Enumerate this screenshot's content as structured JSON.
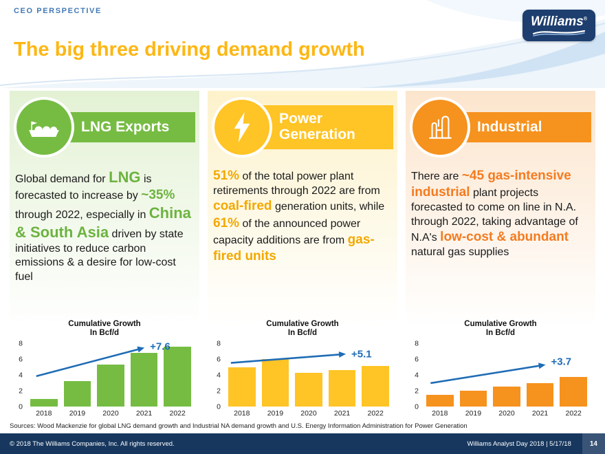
{
  "slide": {
    "eyebrow": "CEO PERSPECTIVE",
    "title": "The big three driving demand growth",
    "logo_text": "Williams",
    "logo_mark": "®",
    "sources": "Sources: Wood Mackenzie for global LNG demand growth and Industrial NA demand growth and U.S. Energy Information Administration for Power Generation",
    "footer_left": "© 2018 The Williams Companies, Inc. All rights reserved.",
    "footer_right": "Williams Analyst Day 2018  |  5/17/18",
    "page_number": "14"
  },
  "colors": {
    "title_gold": "#FDB714",
    "green": "#76BC43",
    "yellow": "#FFC425",
    "orange": "#F6921E",
    "navy": "#17375E",
    "trend_blue": "#1F6CB5"
  },
  "columns": [
    {
      "heading": "LNG Exports",
      "icon": "lng-ship-icon",
      "accent": "#76BC43",
      "accent_text": "#6CB33F",
      "tint": "#e3f1d4",
      "paragraph": [
        {
          "text": "Global demand for ",
          "style": "plain"
        },
        {
          "text": "LNG",
          "style": "em2"
        },
        {
          "text": " is forecasted to increase by ",
          "style": "plain"
        },
        {
          "text": "~35%",
          "style": "em1"
        },
        {
          "text": " through 2022, especially in ",
          "style": "plain"
        },
        {
          "text": "China & South Asia",
          "style": "em2"
        },
        {
          "text": " driven by state initiatives to reduce carbon emissions & a desire for low-cost fuel",
          "style": "plain"
        }
      ]
    },
    {
      "heading": "Power Generation",
      "icon": "lightning-icon",
      "accent": "#FFC425",
      "accent_text": "#F2A900",
      "tint": "#fdf2cb",
      "paragraph": [
        {
          "text": "51%",
          "style": "em1"
        },
        {
          "text": " of the total power plant retirements through 2022 are from ",
          "style": "plain"
        },
        {
          "text": "coal-fired",
          "style": "em1"
        },
        {
          "text": " generation units, while ",
          "style": "plain"
        },
        {
          "text": "61%",
          "style": "em1"
        },
        {
          "text": " of the announced power capacity additions are from ",
          "style": "plain"
        },
        {
          "text": "gas-fired units",
          "style": "em1"
        }
      ]
    },
    {
      "heading": "Industrial",
      "icon": "factory-icon",
      "accent": "#F6921E",
      "accent_text": "#F47B20",
      "tint": "#fce5cd",
      "paragraph": [
        {
          "text": "There are ",
          "style": "plain"
        },
        {
          "text": "~45 gas-intensive industrial",
          "style": "em1"
        },
        {
          "text": " plant projects forecasted to come on line in N.A. through 2022, taking advantage of N.A's ",
          "style": "plain"
        },
        {
          "text": "low-cost & abundant",
          "style": "em1"
        },
        {
          "text": " natural gas supplies",
          "style": "plain"
        }
      ]
    }
  ],
  "chart_data": [
    {
      "type": "bar",
      "title": "Cumulative Growth",
      "subtitle": "In Bcf/d",
      "categories": [
        "2018",
        "2019",
        "2020",
        "2021",
        "2022"
      ],
      "values": [
        1.0,
        3.2,
        5.3,
        6.8,
        7.6
      ],
      "ylim": [
        0,
        8
      ],
      "yticks": [
        0,
        2,
        4,
        6,
        8
      ],
      "bar_color": "#76BC43",
      "annotation": "+7.6",
      "annotation_color": "#1F6CB5",
      "annotation_pos": [
        0.72,
        0.05
      ],
      "arrow": {
        "x1": 0.06,
        "y1": 0.52,
        "x2": 0.7,
        "y2": 0.07
      },
      "grid": false,
      "legend": false
    },
    {
      "type": "bar",
      "title": "Cumulative Growth",
      "subtitle": "In Bcf/d",
      "categories": [
        "2018",
        "2019",
        "2020",
        "2021",
        "2022"
      ],
      "values": [
        5.0,
        6.0,
        4.3,
        4.6,
        5.1
      ],
      "ylim": [
        0,
        8
      ],
      "yticks": [
        0,
        2,
        4,
        6,
        8
      ],
      "bar_color": "#FFC425",
      "annotation": "+5.1",
      "annotation_color": "#1F6CB5",
      "annotation_pos": [
        0.74,
        0.17
      ],
      "arrow": {
        "x1": 0.04,
        "y1": 0.31,
        "x2": 0.72,
        "y2": 0.17
      },
      "grid": false,
      "legend": false
    },
    {
      "type": "bar",
      "title": "Cumulative Growth",
      "subtitle": "In Bcf/d",
      "categories": [
        "2018",
        "2019",
        "2020",
        "2021",
        "2022"
      ],
      "values": [
        1.5,
        2.0,
        2.5,
        3.0,
        3.7
      ],
      "ylim": [
        0,
        8
      ],
      "yticks": [
        0,
        2,
        4,
        6,
        8
      ],
      "bar_color": "#F6921E",
      "annotation": "+3.7",
      "annotation_color": "#1F6CB5",
      "annotation_pos": [
        0.75,
        0.29
      ],
      "arrow": {
        "x1": 0.05,
        "y1": 0.63,
        "x2": 0.73,
        "y2": 0.34
      },
      "grid": false,
      "legend": false
    }
  ]
}
